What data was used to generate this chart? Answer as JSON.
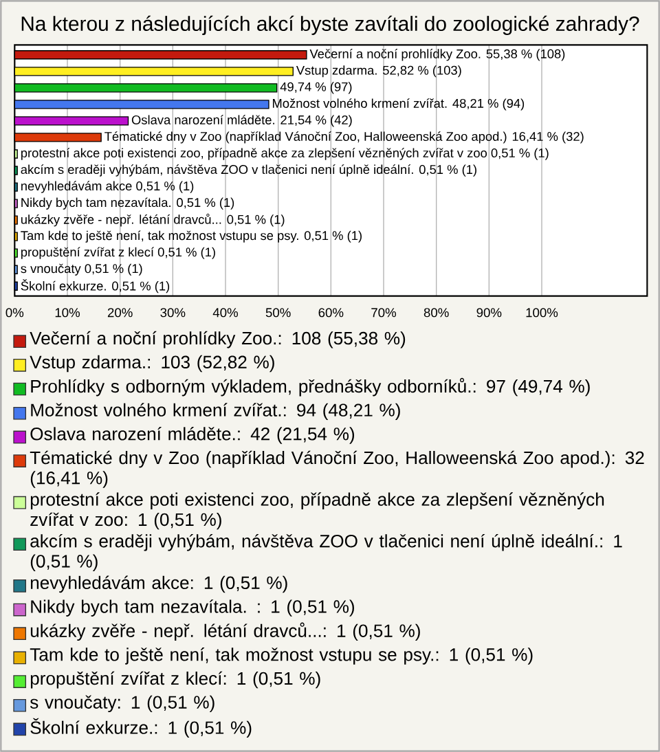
{
  "chart_data": {
    "type": "bar",
    "orientation": "horizontal",
    "title": "Na kterou z následujících akcí byste zavítali do zoologické zahrady?",
    "categories": [
      null,
      null,
      null,
      null,
      null,
      null,
      null,
      null,
      null,
      null,
      null,
      null,
      null,
      null,
      null
    ],
    "series": [
      {
        "name": "Večerní a noční prohlídky Zoo.: 108 (55,38 %)",
        "color": "#c41a0e",
        "values": [
          55.38,
          null,
          null,
          null,
          null,
          null,
          null,
          null,
          null,
          null,
          null,
          null,
          null,
          null,
          null
        ],
        "value_labels": [
          "Večerní a noční prohlídky Zoo. 55,38 % (108)",
          null,
          null,
          null,
          null,
          null,
          null,
          null,
          null,
          null,
          null,
          null,
          null,
          null,
          null
        ]
      },
      {
        "name": "Vstup zdarma.: 103 (52,82 %)",
        "color": "#ffee22",
        "values": [
          null,
          52.82,
          null,
          null,
          null,
          null,
          null,
          null,
          null,
          null,
          null,
          null,
          null,
          null,
          null
        ],
        "value_labels": [
          null,
          "Vstup zdarma. 52,82 % (103)",
          null,
          null,
          null,
          null,
          null,
          null,
          null,
          null,
          null,
          null,
          null,
          null,
          null
        ]
      },
      {
        "name": "Prohlídky s odborným výkladem, přednášky odborníků.: 97 (49,74 %)",
        "color": "#11bb22",
        "values": [
          null,
          null,
          49.74,
          null,
          null,
          null,
          null,
          null,
          null,
          null,
          null,
          null,
          null,
          null,
          null
        ],
        "value_labels": [
          null,
          null,
          "49,74 % (97)",
          null,
          null,
          null,
          null,
          null,
          null,
          null,
          null,
          null,
          null,
          null,
          null
        ]
      },
      {
        "name": "Možnost volného krmení zvířat.: 94 (48,21 %)",
        "color": "#4477ee",
        "values": [
          null,
          null,
          null,
          48.21,
          null,
          null,
          null,
          null,
          null,
          null,
          null,
          null,
          null,
          null,
          null
        ],
        "value_labels": [
          null,
          null,
          null,
          "Možnost volného krmení zvířat. 48,21 % (94)",
          null,
          null,
          null,
          null,
          null,
          null,
          null,
          null,
          null,
          null,
          null
        ]
      },
      {
        "name": "Oslava narození mláděte.: 42 (21,54 %)",
        "color": "#bb11cc",
        "values": [
          null,
          null,
          null,
          null,
          21.54,
          null,
          null,
          null,
          null,
          null,
          null,
          null,
          null,
          null,
          null
        ],
        "value_labels": [
          null,
          null,
          null,
          null,
          "Oslava narození mláděte. 21,54 % (42)",
          null,
          null,
          null,
          null,
          null,
          null,
          null,
          null,
          null,
          null
        ]
      },
      {
        "name": "Tématické dny v Zoo (například Vánoční Zoo, Halloweenská Zoo apod.): 32 (16,41 %)",
        "color": "#dd3a0a",
        "values": [
          null,
          null,
          null,
          null,
          null,
          16.41,
          null,
          null,
          null,
          null,
          null,
          null,
          null,
          null,
          null
        ],
        "value_labels": [
          null,
          null,
          null,
          null,
          null,
          "Tématické dny v Zoo (například Vánoční Zoo, Halloweenská Zoo apod.) 16,41 % (32)",
          null,
          null,
          null,
          null,
          null,
          null,
          null,
          null,
          null
        ]
      },
      {
        "name": "protestní akce poti existenci zoo, případně akce za zlepšení vězněných zvířat v zoo: 1 (0,51 %)",
        "color": "#ccff99",
        "values": [
          null,
          null,
          null,
          null,
          null,
          null,
          0.51,
          null,
          null,
          null,
          null,
          null,
          null,
          null,
          null
        ],
        "value_labels": [
          null,
          null,
          null,
          null,
          null,
          null,
          "protestní akce poti existenci zoo, případně akce za zlepšení vězněných zvířat v zoo 0,51 % (1)",
          null,
          null,
          null,
          null,
          null,
          null,
          null,
          null
        ]
      },
      {
        "name": "akcím s eraději vyhýbám, návštěva ZOO v tlačenici není úplně ideální.: 1 (0,51 %)",
        "color": "#11995a",
        "values": [
          null,
          null,
          null,
          null,
          null,
          null,
          null,
          0.51,
          null,
          null,
          null,
          null,
          null,
          null,
          null
        ],
        "value_labels": [
          null,
          null,
          null,
          null,
          null,
          null,
          null,
          "akcím s eraději vyhýbám, návštěva ZOO v tlačenici není úplně ideální. 0,51 % (1)",
          null,
          null,
          null,
          null,
          null,
          null,
          null
        ]
      },
      {
        "name": "nevyhledávám akce: 1 (0,51 %)",
        "color": "#227788",
        "values": [
          null,
          null,
          null,
          null,
          null,
          null,
          null,
          null,
          0.51,
          null,
          null,
          null,
          null,
          null,
          null
        ],
        "value_labels": [
          null,
          null,
          null,
          null,
          null,
          null,
          null,
          null,
          "nevyhledávám akce 0,51 % (1)",
          null,
          null,
          null,
          null,
          null,
          null
        ]
      },
      {
        "name": "Nikdy bych tam nezavítala. : 1 (0,51 %)",
        "color": "#cc66cc",
        "values": [
          null,
          null,
          null,
          null,
          null,
          null,
          null,
          null,
          null,
          0.51,
          null,
          null,
          null,
          null,
          null
        ],
        "value_labels": [
          null,
          null,
          null,
          null,
          null,
          null,
          null,
          null,
          null,
          "Nikdy bych tam nezavítala.  0,51 % (1)",
          null,
          null,
          null,
          null,
          null
        ]
      },
      {
        "name": "ukázky zvěře - nepř. létání dravců...: 1 (0,51 %)",
        "color": "#ee7700",
        "values": [
          null,
          null,
          null,
          null,
          null,
          null,
          null,
          null,
          null,
          null,
          0.51,
          null,
          null,
          null,
          null
        ],
        "value_labels": [
          null,
          null,
          null,
          null,
          null,
          null,
          null,
          null,
          null,
          null,
          "ukázky zvěře - nepř. létání dravců... 0,51 % (1)",
          null,
          null,
          null,
          null
        ]
      },
      {
        "name": "Tam kde to ještě není, tak možnost vstupu se psy.: 1 (0,51 %)",
        "color": "#e8b000",
        "values": [
          null,
          null,
          null,
          null,
          null,
          null,
          null,
          null,
          null,
          null,
          null,
          0.51,
          null,
          null,
          null
        ],
        "value_labels": [
          null,
          null,
          null,
          null,
          null,
          null,
          null,
          null,
          null,
          null,
          null,
          "Tam kde to ještě není, tak možnost vstupu se psy. 0,51 % (1)",
          null,
          null,
          null
        ]
      },
      {
        "name": "propuštění zvířat z klecí: 1 (0,51 %)",
        "color": "#55ee33",
        "values": [
          null,
          null,
          null,
          null,
          null,
          null,
          null,
          null,
          null,
          null,
          null,
          null,
          0.51,
          null,
          null
        ],
        "value_labels": [
          null,
          null,
          null,
          null,
          null,
          null,
          null,
          null,
          null,
          null,
          null,
          null,
          "propuštění zvířat z klecí 0,51 % (1)",
          null,
          null
        ]
      },
      {
        "name": "s vnoučaty: 1 (0,51 %)",
        "color": "#6699dd",
        "values": [
          null,
          null,
          null,
          null,
          null,
          null,
          null,
          null,
          null,
          null,
          null,
          null,
          null,
          0.51,
          null
        ],
        "value_labels": [
          null,
          null,
          null,
          null,
          null,
          null,
          null,
          null,
          null,
          null,
          null,
          null,
          null,
          "s vnoučaty 0,51 % (1)",
          null
        ]
      },
      {
        "name": "Školní exkurze.: 1 (0,51 %)",
        "color": "#2244aa",
        "values": [
          null,
          null,
          null,
          null,
          null,
          null,
          null,
          null,
          null,
          null,
          null,
          null,
          null,
          null,
          0.51
        ],
        "value_labels": [
          null,
          null,
          null,
          null,
          null,
          null,
          null,
          null,
          null,
          null,
          null,
          null,
          null,
          null,
          "Školní exkurze. 0,51 % (1)"
        ]
      }
    ],
    "xlim": [
      0,
      120
    ],
    "xticks": [
      {
        "value": 0,
        "label": "0%"
      },
      {
        "value": 10,
        "label": "10%"
      },
      {
        "value": 20,
        "label": "20%"
      },
      {
        "value": 30,
        "label": "30%"
      },
      {
        "value": 40,
        "label": "40%"
      },
      {
        "value": 50,
        "label": "50%"
      },
      {
        "value": 60,
        "label": "60%"
      },
      {
        "value": 70,
        "label": "70%"
      },
      {
        "value": 80,
        "label": "80%"
      },
      {
        "value": 90,
        "label": "90%"
      },
      {
        "value": 100,
        "label": "100%"
      }
    ],
    "grid": "x",
    "legend": "bottom",
    "tick_labels": "x"
  }
}
